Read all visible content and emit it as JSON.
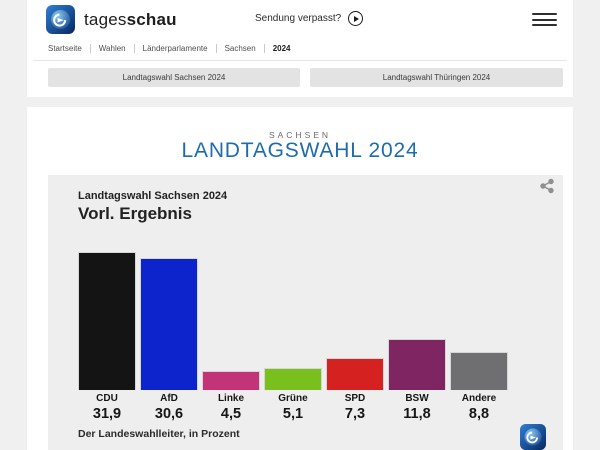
{
  "header": {
    "brand_regular": "tages",
    "brand_bold": "schau",
    "sendung_verpasst": "Sendung verpasst?"
  },
  "breadcrumb": {
    "items": [
      {
        "label": "Startseite",
        "active": false
      },
      {
        "label": "Wahlen",
        "active": false
      },
      {
        "label": "Länderparlamente",
        "active": false
      },
      {
        "label": "Sachsen",
        "active": false
      },
      {
        "label": "2024",
        "active": true
      }
    ]
  },
  "tabs": [
    {
      "label": "Landtagswahl Sachsen 2024"
    },
    {
      "label": "Landtagswahl Thüringen 2024"
    }
  ],
  "main": {
    "kicker": "SACHSEN",
    "title": "LANDTAGSWAHL 2024",
    "title_color": "#1e6cb0"
  },
  "chart_card": {
    "title": "Landtagswahl Sachsen 2024",
    "subtitle": "Vorl. Ergebnis",
    "source": "Der Landeswahlleiter, in Prozent"
  },
  "chart_data": {
    "type": "bar",
    "title": "Landtagswahl Sachsen 2024 — Vorl. Ergebnis",
    "categories": [
      "CDU",
      "AfD",
      "Linke",
      "Grüne",
      "SPD",
      "BSW",
      "Andere"
    ],
    "values": [
      31.9,
      30.6,
      4.5,
      5.1,
      7.3,
      11.8,
      8.8
    ],
    "value_labels": [
      "31,9",
      "30,6",
      "4,5",
      "5,1",
      "7,3",
      "11,8",
      "8,8"
    ],
    "colors": [
      "#141414",
      "#0d24cc",
      "#c23477",
      "#79c01e",
      "#d52221",
      "#7e2562",
      "#6f6f72"
    ],
    "ylabel": "Prozent",
    "ylim": [
      0,
      33
    ],
    "grid": false,
    "legend": "none",
    "source": "Der Landeswahlleiter, in Prozent"
  }
}
